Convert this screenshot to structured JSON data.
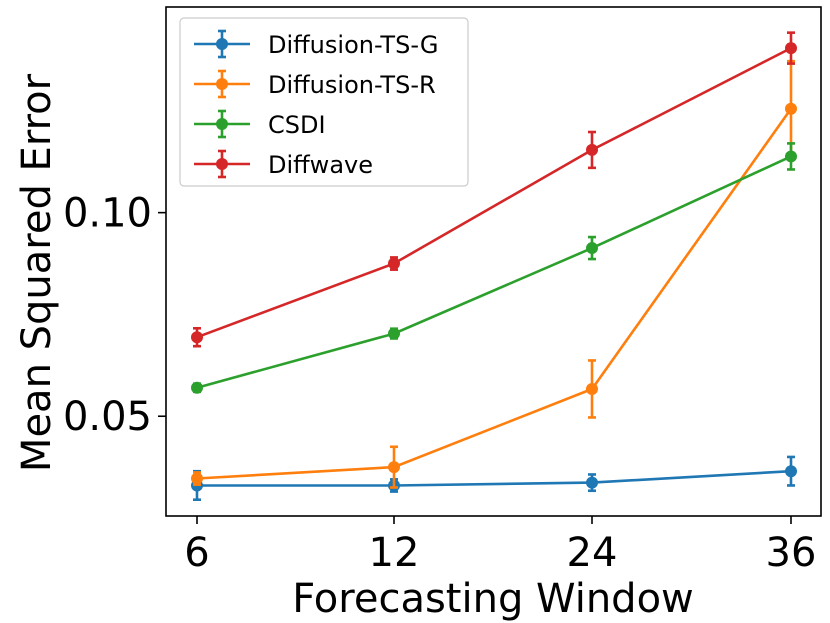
{
  "chart_data": {
    "type": "line",
    "title": "",
    "xlabel": "Forecasting Window",
    "ylabel": "Mean Squared Error",
    "categories": [
      "6",
      "12",
      "24",
      "36"
    ],
    "yticks": [
      0.05,
      0.1
    ],
    "ytick_labels": [
      "0.05",
      "0.10"
    ],
    "ylim": [
      0.0255,
      0.1505
    ],
    "grid": false,
    "legend_position": "top-left",
    "series": [
      {
        "name": "Diffusion-TS-G",
        "color": "#1f77b4",
        "values": [
          0.033,
          0.033,
          0.0337,
          0.0365
        ],
        "errors": [
          0.0035,
          0.0015,
          0.002,
          0.0035
        ]
      },
      {
        "name": "Diffusion-TS-R",
        "color": "#ff7f0e",
        "values": [
          0.0347,
          0.0375,
          0.0567,
          0.1255
        ],
        "errors": [
          0.0015,
          0.005,
          0.007,
          0.0117
        ]
      },
      {
        "name": "CSDI",
        "color": "#2ca02c",
        "values": [
          0.057,
          0.0703,
          0.0913,
          0.1138
        ],
        "errors": [
          0.001,
          0.0012,
          0.0027,
          0.0032
        ]
      },
      {
        "name": "Diffwave",
        "color": "#d62728",
        "values": [
          0.0694,
          0.0875,
          0.1154,
          0.1404
        ],
        "errors": [
          0.0022,
          0.0015,
          0.0044,
          0.0038
        ]
      }
    ]
  }
}
